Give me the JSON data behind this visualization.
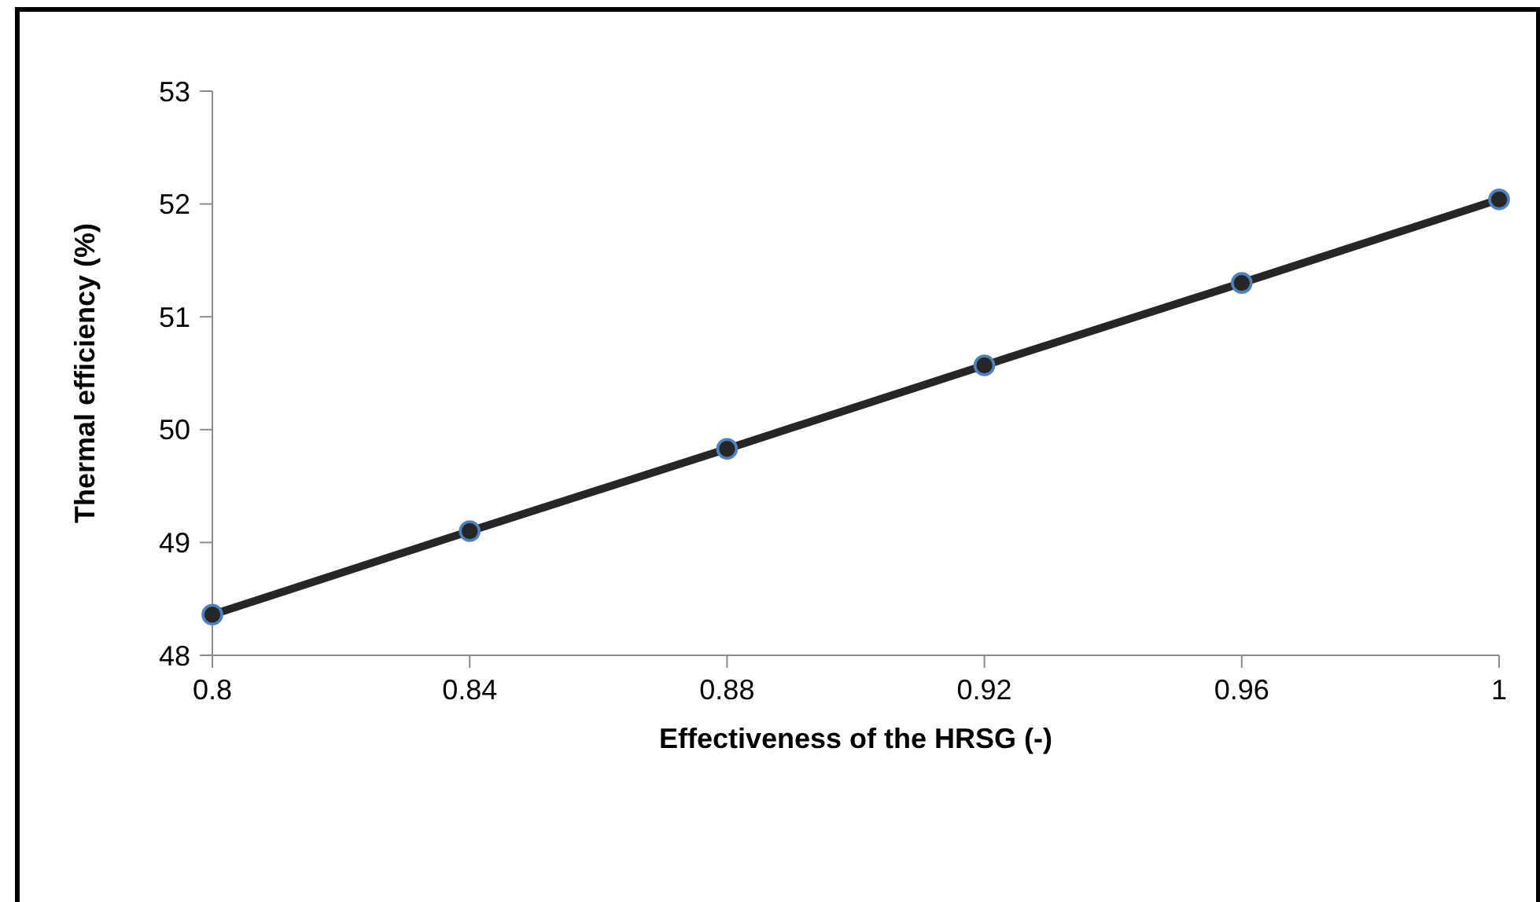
{
  "chart_data": {
    "type": "line",
    "xlabel": "Effectiveness of the HRSG (-)",
    "ylabel": "Thermal efficiency (%)",
    "x": [
      0.8,
      0.84,
      0.88,
      0.92,
      0.96,
      1
    ],
    "series": [
      {
        "color": "#262626",
        "values": [
          48.36,
          49.1,
          49.83,
          50.57,
          51.3,
          52.04
        ]
      }
    ],
    "xlim": [
      0.8,
      1
    ],
    "xticks": [
      0.8,
      0.84,
      0.88,
      0.92,
      0.96,
      1
    ],
    "ylim": [
      48,
      53
    ],
    "yticks": [
      48,
      49,
      50,
      51,
      52,
      53
    ],
    "marker": "circle",
    "line_style": "solid",
    "grid": false
  }
}
